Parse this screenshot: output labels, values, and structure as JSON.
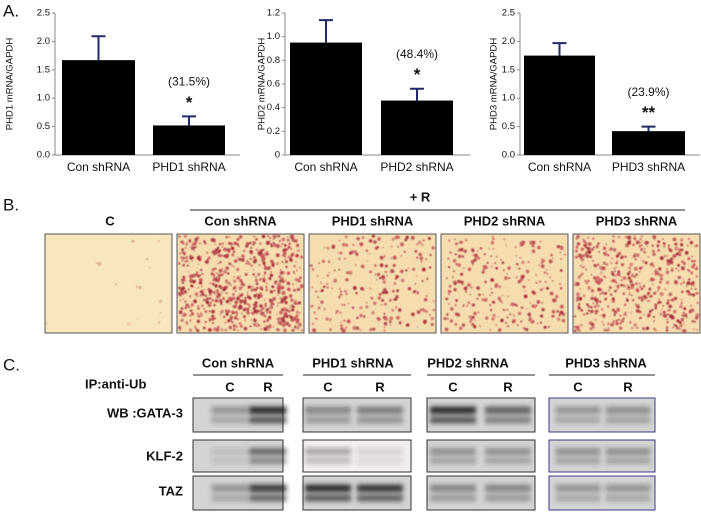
{
  "chart_data": [
    {
      "type": "bar",
      "y_label": "PHD1 mRNA/GAPDH",
      "categories": [
        "Con shRNA",
        "PHD1 shRNA"
      ],
      "values": [
        1.67,
        0.52
      ],
      "errors": [
        0.42,
        0.16
      ],
      "color": "#000000",
      "error_color": "#1f2a6b",
      "ylim": [
        0,
        2.5
      ],
      "yticks": [
        {
          "value": 0,
          "label": "0.0"
        },
        0.5,
        {
          "value": 1,
          "label": "1.0"
        },
        1.5,
        {
          "value": 2,
          "label": "2.0"
        },
        2.5
      ],
      "annotations": [
        "(31.5%)",
        "*"
      ]
    },
    {
      "type": "bar",
      "y_label": "PHD2 mRNA/GAPDH",
      "categories": [
        "Con shRNA",
        "PHD2 shRNA"
      ],
      "values": [
        0.95,
        0.46
      ],
      "errors": [
        0.19,
        0.1
      ],
      "color": "#000000",
      "error_color": "#1f2a6b",
      "ylim": [
        0,
        1.2
      ],
      "yticks": [
        0,
        0.2,
        0.4,
        0.6,
        0.8,
        {
          "value": 1,
          "label": "1.0"
        },
        1.2
      ],
      "annotations": [
        "(48.4%)",
        "*"
      ]
    },
    {
      "type": "bar",
      "y_label": "PHD3 mRNA/GAPDH",
      "categories": [
        "Con shRNA",
        "PHD3 shRNA"
      ],
      "values": [
        1.75,
        0.42
      ],
      "errors": [
        0.22,
        0.08
      ],
      "color": "#000000",
      "error_color": "#1f2a6b",
      "ylim": [
        0,
        2.5
      ],
      "yticks": [
        {
          "value": 0,
          "label": "0.0"
        },
        0.5,
        {
          "value": 1,
          "label": "1.0"
        },
        1.5,
        {
          "value": 2,
          "label": "2.0"
        },
        2.5
      ],
      "annotations": [
        "(23.9%)",
        "**"
      ]
    }
  ],
  "panel_labels": [
    "A.",
    "B.",
    "C."
  ],
  "panel_b": {
    "control_label": "C",
    "treatment_label": "+ R",
    "conditions": [
      "Con shRNA",
      "PHD1 shRNA",
      "PHD2 shRNA",
      "PHD3 shRNA"
    ]
  },
  "panel_c": {
    "groups": [
      "Con shRNA",
      "PHD1 shRNA",
      "PHD2 shRNA",
      "PHD3 shRNA"
    ],
    "ip_label": "IP:anti-Ub",
    "lanes": [
      "C",
      "R"
    ],
    "rows": [
      "WB :GATA-3",
      "KLF-2",
      "TAZ"
    ]
  }
}
